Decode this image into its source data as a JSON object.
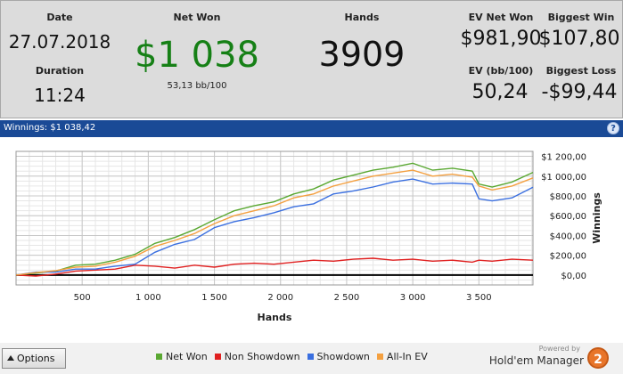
{
  "summary": {
    "date_label": "Date",
    "date_value": "27.07.2018",
    "duration_label": "Duration",
    "duration_value": "11:24",
    "net_won_label": "Net Won",
    "net_won_value": "$1 038",
    "net_won_sub": "53,13 bb/100",
    "hands_label": "Hands",
    "hands_value": "3909",
    "ev_net_won_label": "EV Net Won",
    "ev_net_won_value": "$981,90",
    "ev_bb_label": "EV (bb/100)",
    "ev_bb_value": "50,24",
    "biggest_win_label": "Biggest Win",
    "biggest_win_value": "$107,80",
    "biggest_loss_label": "Biggest Loss",
    "biggest_loss_value": "-$99,44"
  },
  "chart_header": {
    "title": "Winnings:  $1 038,42",
    "help": "?"
  },
  "bottom": {
    "options_label": "Options",
    "powered_by": "Powered by",
    "brand": "Hold'em Manager",
    "brand_badge": "2"
  },
  "colors": {
    "net_won": "#5aa832",
    "non_showdown": "#e02020",
    "showdown": "#3a6fe0",
    "all_in_ev": "#f4a040",
    "net_won_text": "#168016",
    "header_bar": "#1a4a96"
  },
  "chart_data": {
    "type": "line",
    "xlabel": "Hands",
    "ylabel": "Winnings",
    "xlim": [
      0,
      3909
    ],
    "ylim": [
      -100,
      1250
    ],
    "x_ticks": [
      500,
      1000,
      1500,
      2000,
      2500,
      3000,
      3500
    ],
    "x_tick_labels": [
      "500",
      "1 000",
      "1 500",
      "2 000",
      "2 500",
      "3 000",
      "3 500"
    ],
    "y_ticks": [
      0,
      200,
      400,
      600,
      800,
      1000,
      1200
    ],
    "y_tick_labels": [
      "$0,00",
      "$200,00",
      "$400,00",
      "$600,00",
      "$800,00",
      "$1 000,00",
      "$1 200,00"
    ],
    "grid": true,
    "legend_position": "bottom",
    "x": [
      0,
      150,
      300,
      450,
      600,
      750,
      900,
      1050,
      1200,
      1350,
      1500,
      1650,
      1800,
      1950,
      2100,
      2250,
      2400,
      2550,
      2700,
      2850,
      3000,
      3150,
      3300,
      3450,
      3500,
      3600,
      3750,
      3909
    ],
    "series": [
      {
        "name": "Net Won",
        "values": [
          0,
          20,
          40,
          100,
          110,
          150,
          210,
          320,
          380,
          460,
          560,
          650,
          700,
          740,
          820,
          870,
          960,
          1010,
          1060,
          1090,
          1130,
          1060,
          1080,
          1050,
          920,
          890,
          940,
          1038
        ]
      },
      {
        "name": "Non Showdown",
        "values": [
          0,
          -10,
          10,
          40,
          50,
          60,
          100,
          90,
          70,
          100,
          80,
          110,
          120,
          110,
          130,
          150,
          140,
          160,
          170,
          150,
          160,
          140,
          150,
          130,
          150,
          140,
          160,
          150
        ]
      },
      {
        "name": "Showdown",
        "values": [
          0,
          30,
          30,
          60,
          60,
          90,
          110,
          230,
          310,
          360,
          480,
          540,
          580,
          630,
          690,
          720,
          820,
          850,
          890,
          940,
          970,
          920,
          930,
          920,
          770,
          750,
          780,
          888
        ]
      },
      {
        "name": "All-In EV",
        "values": [
          0,
          25,
          45,
          80,
          90,
          130,
          190,
          290,
          350,
          420,
          520,
          600,
          650,
          700,
          780,
          820,
          900,
          950,
          1000,
          1030,
          1060,
          1000,
          1020,
          990,
          900,
          860,
          900,
          982
        ]
      }
    ]
  }
}
